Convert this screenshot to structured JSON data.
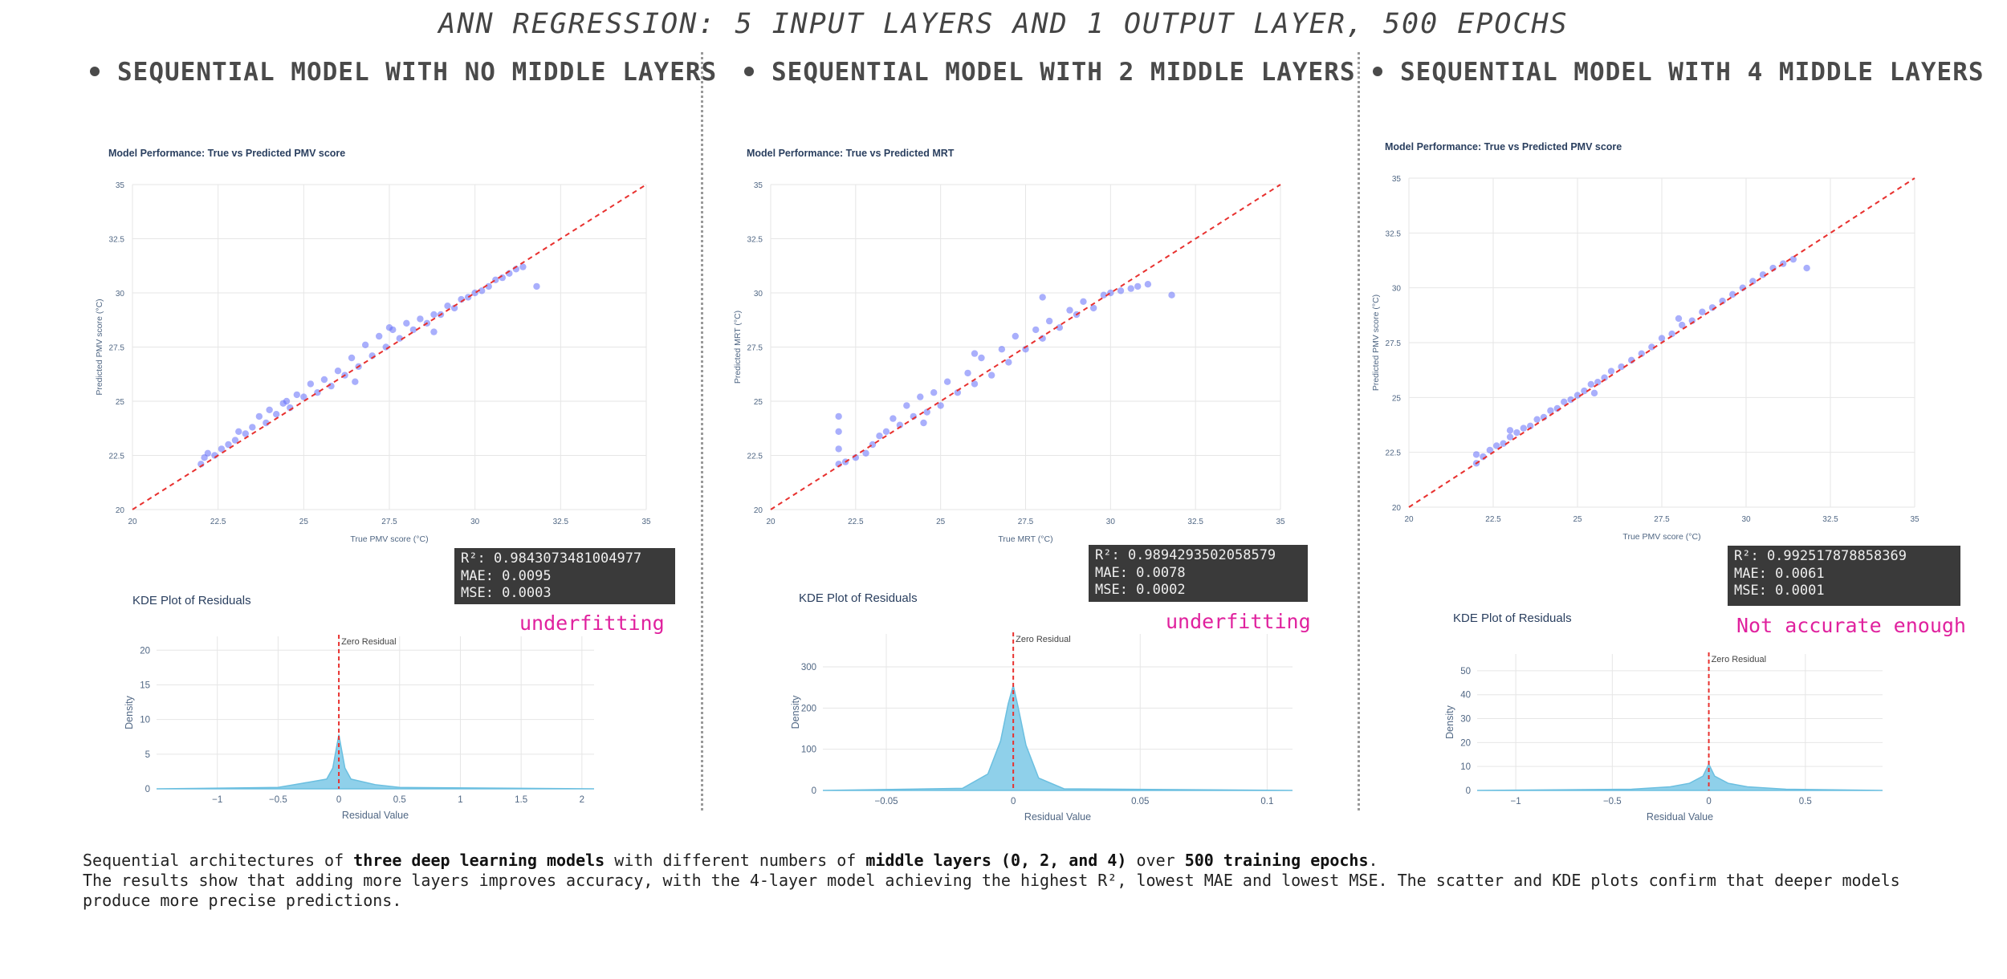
{
  "header": {
    "title": "ANN REGRESSION: 5 INPUT LAYERS AND 1 OUTPUT LAYER, 500 EPOCHS"
  },
  "columns": [
    {
      "heading": "SEQUENTIAL MODEL WITH NO MIDDLE LAYERS",
      "metrics": {
        "r2": "R²: 0.9843073481004977",
        "mae": "MAE: 0.0095",
        "mse": "MSE: 0.0003"
      },
      "verdict": "underfitting"
    },
    {
      "heading": "SEQUENTIAL MODEL WITH 2 MIDDLE LAYERS",
      "metrics": {
        "r2": "R²: 0.9894293502058579",
        "mae": "MAE: 0.0078",
        "mse": "MSE: 0.0002"
      },
      "verdict": "underfitting"
    },
    {
      "heading": "SEQUENTIAL MODEL WITH 4 MIDDLE LAYERS",
      "metrics": {
        "r2": "R²: 0.992517878858369",
        "mae": "MAE: 0.0061",
        "mse": "MSE: 0.0001"
      },
      "verdict": "Not accurate enough"
    }
  ],
  "footer": {
    "line1": {
      "t1": "Sequential architectures of ",
      "b1": "three deep learning models",
      "t2": " with different numbers of ",
      "b2": "middle layers (0, 2, and 4)",
      "t3": " over ",
      "b3": "500 training epochs",
      "t4": "."
    },
    "line2": "The results show that adding more layers improves accuracy, with the 4-layer model achieving the highest R², lowest MAE and lowest MSE. The scatter and KDE plots confirm that deeper models produce more precise predictions."
  },
  "colors": {
    "scatter": "#636efa",
    "diagonal": "#e8312f",
    "kde_fill": "#8fd0ea",
    "kde_line": "#6bbfe0",
    "verdict": "#e0219e",
    "grid": "#e6e6e6"
  },
  "chart_data": [
    {
      "type": "scatter",
      "title": "Model Performance: True vs Predicted PMV score",
      "xlabel": "True PMV score (°C)",
      "ylabel": "Predicted PMV score (°C)",
      "xlim": [
        20,
        35
      ],
      "ylim": [
        20,
        35
      ],
      "xticks": [
        "20",
        "22.5",
        "25",
        "27.5",
        "30",
        "32.5",
        "35"
      ],
      "yticks": [
        "20",
        "22.5",
        "25",
        "27.5",
        "30",
        "32.5",
        "35"
      ],
      "reference_line": "y = x",
      "points": [
        [
          22.0,
          22.1
        ],
        [
          22.1,
          22.4
        ],
        [
          22.2,
          22.6
        ],
        [
          22.4,
          22.5
        ],
        [
          22.6,
          22.8
        ],
        [
          22.8,
          23.0
        ],
        [
          23.0,
          23.2
        ],
        [
          23.1,
          23.6
        ],
        [
          23.3,
          23.5
        ],
        [
          23.5,
          23.8
        ],
        [
          23.7,
          24.3
        ],
        [
          23.9,
          24.0
        ],
        [
          24.0,
          24.6
        ],
        [
          24.2,
          24.4
        ],
        [
          24.4,
          24.9
        ],
        [
          24.6,
          24.7
        ],
        [
          24.8,
          25.3
        ],
        [
          25.0,
          25.2
        ],
        [
          25.2,
          25.8
        ],
        [
          25.4,
          25.4
        ],
        [
          25.6,
          26.0
        ],
        [
          25.8,
          25.7
        ],
        [
          26.0,
          26.4
        ],
        [
          26.2,
          26.2
        ],
        [
          26.4,
          27.0
        ],
        [
          26.6,
          26.6
        ],
        [
          26.8,
          27.6
        ],
        [
          27.0,
          27.1
        ],
        [
          27.2,
          28.0
        ],
        [
          27.4,
          27.5
        ],
        [
          27.6,
          28.3
        ],
        [
          27.8,
          27.9
        ],
        [
          28.0,
          28.6
        ],
        [
          28.2,
          28.3
        ],
        [
          28.4,
          28.8
        ],
        [
          28.6,
          28.6
        ],
        [
          28.8,
          29.0
        ],
        [
          29.0,
          29.0
        ],
        [
          29.2,
          29.4
        ],
        [
          29.4,
          29.3
        ],
        [
          29.6,
          29.7
        ],
        [
          29.8,
          29.8
        ],
        [
          30.0,
          30.0
        ],
        [
          30.2,
          30.1
        ],
        [
          30.4,
          30.3
        ],
        [
          30.6,
          30.6
        ],
        [
          30.8,
          30.7
        ],
        [
          31.0,
          30.9
        ],
        [
          31.2,
          31.1
        ],
        [
          31.4,
          31.2
        ],
        [
          31.8,
          30.3
        ],
        [
          26.5,
          25.9
        ],
        [
          27.5,
          28.4
        ],
        [
          28.8,
          28.2
        ],
        [
          24.5,
          25.0
        ]
      ],
      "residuals_kde": {
        "title": "KDE Plot of Residuals",
        "xlabel": "Residual Value",
        "ylabel": "Density",
        "xlim": [
          -1.5,
          2.1
        ],
        "ylim": [
          0,
          22
        ],
        "xticks": [
          -1,
          -0.5,
          0,
          0.5,
          1,
          1.5,
          2
        ],
        "yticks": [
          0,
          5,
          10,
          15,
          20
        ],
        "x": [
          -1.5,
          -0.5,
          -0.3,
          -0.1,
          -0.05,
          0,
          0.05,
          0.1,
          0.3,
          0.5,
          2.1
        ],
        "density": [
          0,
          0.2,
          0.8,
          1.4,
          3,
          7.8,
          3,
          1.4,
          0.6,
          0.2,
          0
        ],
        "annotation": "Zero Residual"
      }
    },
    {
      "type": "scatter",
      "title": "Model Performance: True vs Predicted MRT",
      "xlabel": "True MRT (°C)",
      "ylabel": "Predicted MRT (°C)",
      "xlim": [
        20,
        35
      ],
      "ylim": [
        20,
        35
      ],
      "xticks": [
        "20",
        "22.5",
        "25",
        "27.5",
        "30",
        "32.5",
        "35"
      ],
      "yticks": [
        "20",
        "22.5",
        "25",
        "27.5",
        "30",
        "32.5",
        "35"
      ],
      "reference_line": "y = x",
      "points": [
        [
          22.0,
          22.1
        ],
        [
          22.0,
          22.8
        ],
        [
          22.0,
          23.6
        ],
        [
          22.0,
          24.3
        ],
        [
          22.2,
          22.2
        ],
        [
          22.5,
          22.4
        ],
        [
          22.8,
          22.6
        ],
        [
          23.0,
          23.0
        ],
        [
          23.2,
          23.4
        ],
        [
          23.4,
          23.6
        ],
        [
          23.6,
          24.2
        ],
        [
          23.8,
          23.9
        ],
        [
          24.0,
          24.8
        ],
        [
          24.2,
          24.3
        ],
        [
          24.4,
          25.2
        ],
        [
          24.6,
          24.5
        ],
        [
          24.8,
          25.4
        ],
        [
          25.0,
          24.8
        ],
        [
          25.2,
          25.9
        ],
        [
          25.5,
          25.4
        ],
        [
          25.8,
          26.3
        ],
        [
          26.0,
          25.8
        ],
        [
          26.2,
          27.0
        ],
        [
          26.5,
          26.2
        ],
        [
          26.8,
          27.4
        ],
        [
          27.0,
          26.8
        ],
        [
          27.2,
          28.0
        ],
        [
          27.5,
          27.4
        ],
        [
          27.8,
          28.3
        ],
        [
          28.0,
          27.9
        ],
        [
          28.2,
          28.7
        ],
        [
          28.5,
          28.4
        ],
        [
          28.8,
          29.2
        ],
        [
          29.0,
          29.0
        ],
        [
          29.2,
          29.6
        ],
        [
          29.5,
          29.3
        ],
        [
          29.8,
          29.9
        ],
        [
          30.0,
          30.0
        ],
        [
          30.3,
          30.1
        ],
        [
          30.6,
          30.2
        ],
        [
          30.8,
          30.3
        ],
        [
          31.1,
          30.4
        ],
        [
          31.8,
          29.9
        ],
        [
          26.0,
          27.2
        ],
        [
          28.0,
          29.8
        ],
        [
          24.5,
          24.0
        ]
      ],
      "residuals_kde": {
        "title": "KDE Plot of Residuals",
        "xlabel": "Residual Value",
        "ylabel": "Density",
        "xlim": [
          -0.075,
          0.11
        ],
        "ylim": [
          0,
          380
        ],
        "xticks": [
          -0.05,
          0,
          0.05,
          0.1
        ],
        "yticks": [
          0,
          100,
          200,
          300
        ],
        "x": [
          -0.075,
          -0.02,
          -0.01,
          -0.005,
          -0.002,
          0,
          0.002,
          0.005,
          0.01,
          0.02,
          0.11
        ],
        "density": [
          0,
          5,
          40,
          120,
          210,
          255,
          200,
          110,
          30,
          4,
          0
        ],
        "annotation": "Zero Residual"
      }
    },
    {
      "type": "scatter",
      "title": "Model Performance: True vs Predicted PMV score",
      "xlabel": "True PMV score (°C)",
      "ylabel": "Predicted PMV score (°C)",
      "xlim": [
        20,
        35
      ],
      "ylim": [
        20,
        35
      ],
      "xticks": [
        "20",
        "22.5",
        "25",
        "27.5",
        "30",
        "32.5",
        "35"
      ],
      "yticks": [
        "20",
        "22.5",
        "25",
        "27.5",
        "30",
        "32.5",
        "35"
      ],
      "reference_line": "y = x",
      "points": [
        [
          22.0,
          22.0
        ],
        [
          22.0,
          22.4
        ],
        [
          22.2,
          22.3
        ],
        [
          22.4,
          22.6
        ],
        [
          22.6,
          22.8
        ],
        [
          22.8,
          22.9
        ],
        [
          23.0,
          23.2
        ],
        [
          23.2,
          23.4
        ],
        [
          23.4,
          23.6
        ],
        [
          23.6,
          23.7
        ],
        [
          23.8,
          24.0
        ],
        [
          24.0,
          24.1
        ],
        [
          24.2,
          24.4
        ],
        [
          24.4,
          24.5
        ],
        [
          24.6,
          24.8
        ],
        [
          24.8,
          24.9
        ],
        [
          25.0,
          25.1
        ],
        [
          25.2,
          25.3
        ],
        [
          25.4,
          25.6
        ],
        [
          25.6,
          25.7
        ],
        [
          25.8,
          25.9
        ],
        [
          26.0,
          26.2
        ],
        [
          26.3,
          26.4
        ],
        [
          26.6,
          26.7
        ],
        [
          26.9,
          27.0
        ],
        [
          27.2,
          27.3
        ],
        [
          27.5,
          27.7
        ],
        [
          27.8,
          27.9
        ],
        [
          28.1,
          28.3
        ],
        [
          28.4,
          28.5
        ],
        [
          28.7,
          28.9
        ],
        [
          29.0,
          29.1
        ],
        [
          29.3,
          29.4
        ],
        [
          29.6,
          29.7
        ],
        [
          29.9,
          30.0
        ],
        [
          30.2,
          30.3
        ],
        [
          30.5,
          30.6
        ],
        [
          30.8,
          30.9
        ],
        [
          31.1,
          31.1
        ],
        [
          31.4,
          31.3
        ],
        [
          31.8,
          30.9
        ],
        [
          23.0,
          23.5
        ],
        [
          25.5,
          25.2
        ],
        [
          28.0,
          28.6
        ]
      ],
      "residuals_kde": {
        "title": "KDE Plot of Residuals",
        "xlabel": "Residual Value",
        "ylabel": "Density",
        "xlim": [
          -1.2,
          0.9
        ],
        "ylim": [
          0,
          57
        ],
        "xticks": [
          -1,
          -0.5,
          0,
          0.5
        ],
        "yticks": [
          0,
          10,
          20,
          30,
          40,
          50
        ],
        "x": [
          -1.2,
          -0.4,
          -0.2,
          -0.1,
          -0.03,
          0,
          0.03,
          0.1,
          0.2,
          0.4,
          0.9
        ],
        "density": [
          0,
          0.5,
          1.5,
          3,
          6,
          11,
          6,
          3,
          1.5,
          0.5,
          0
        ],
        "annotation": "Zero Residual"
      }
    }
  ]
}
